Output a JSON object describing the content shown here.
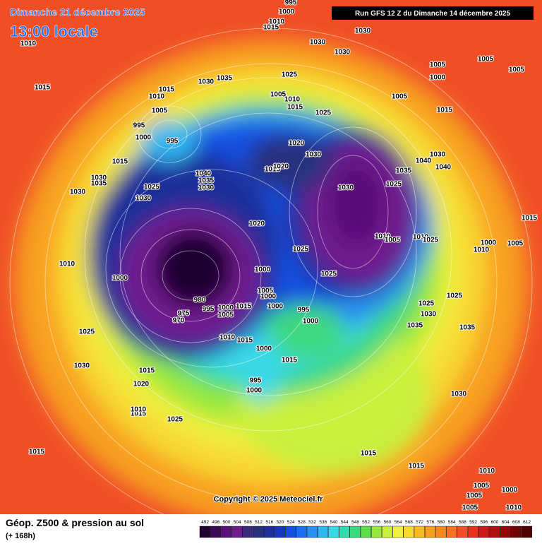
{
  "header": {
    "date": "Dimanche 21 décembre 2025",
    "time": "13:00 locale",
    "run": "Run GFS 12 Z du Dimanche 14 décembre 2025"
  },
  "footer": {
    "title": "Géop. Z500 & pression au sol",
    "lead": "(+ 168h)",
    "copyright": "Copyright © 2025 Meteociel.fr"
  },
  "legend": {
    "levels": [
      492,
      496,
      500,
      504,
      508,
      512,
      516,
      520,
      524,
      528,
      532,
      536,
      540,
      544,
      548,
      552,
      556,
      560,
      564,
      568,
      572,
      576,
      580,
      584,
      588,
      592,
      596,
      600,
      604,
      608,
      612
    ],
    "colors": [
      "#1e0230",
      "#3a0a55",
      "#5a107a",
      "#701a8e",
      "#3c2a7a",
      "#27307e",
      "#1f2f9a",
      "#1636c0",
      "#1450e0",
      "#1e6cf0",
      "#2a90f0",
      "#30b6f0",
      "#3ad8e8",
      "#36d8b0",
      "#3cd880",
      "#60dc50",
      "#98e83c",
      "#c8f03c",
      "#f0f040",
      "#f8d830",
      "#f8b828",
      "#f8a020",
      "#f88820",
      "#f87020",
      "#f05028",
      "#e83020",
      "#d01818",
      "#b01010",
      "#900808",
      "#700404",
      "#500000"
    ]
  },
  "isobar_labels": [
    995,
    1000,
    1010,
    1015,
    1030,
    1010,
    1030,
    1030,
    1015,
    1030,
    1035,
    1025,
    1015,
    1010,
    1005,
    1010,
    1015,
    1005,
    1025,
    1005,
    995,
    1000,
    995,
    1015,
    1005,
    1000,
    1005,
    1005,
    1015,
    1020,
    1030,
    1040,
    1035,
    1030,
    1015,
    1020,
    1030,
    1035,
    1030,
    1025,
    1030,
    1035,
    1030,
    1040,
    1040,
    1030,
    1025,
    1020,
    1015,
    1010,
    1005,
    1010,
    1025,
    1000,
    1010,
    1005,
    1025,
    1000,
    1025,
    1010,
    1000,
    980,
    975,
    970,
    995,
    1000,
    1005,
    1015,
    1005,
    1000,
    1000,
    995,
    1000,
    1025,
    1025,
    1030,
    1035,
    1035,
    1025,
    1010,
    1015,
    1000,
    1015,
    1030,
    1015,
    1020,
    995,
    1000,
    1030,
    1015,
    1025,
    1015,
    1015,
    1015,
    1010,
    1010,
    1005,
    1000,
    1005,
    1005,
    1010
  ]
}
